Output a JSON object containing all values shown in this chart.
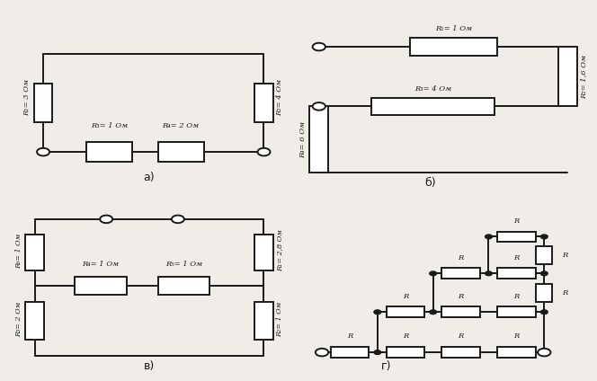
{
  "bg_color": "#f0ede8",
  "line_color": "#1a1a1a",
  "text_color": "#1a1a1a",
  "panel_a": {
    "label": "а)",
    "R1": "R₁= 3 Ом",
    "R2": "R₂= 4 Ом",
    "R3": "R₃= 1 Ом",
    "R4": "R₄= 2 Ом"
  },
  "panel_b": {
    "label": "б)",
    "R1": "R₁= 1 Ом",
    "R2": "R₂= 1,6 Ом",
    "R3": "R₃= 4 Ом",
    "R4": "R₄= 6 Ом"
  },
  "panel_v": {
    "label": "в)",
    "R1": "R₁= 2,8 Ом",
    "R2": "R₂= 1 Ом",
    "R3": "R₃= 2 Ом",
    "R4": "R₄= 1 Ом",
    "R5": "R₅= 1 Ом",
    "R6": "R₆= 1 Ом"
  },
  "panel_g": {
    "label": "г)",
    "R": "R"
  }
}
